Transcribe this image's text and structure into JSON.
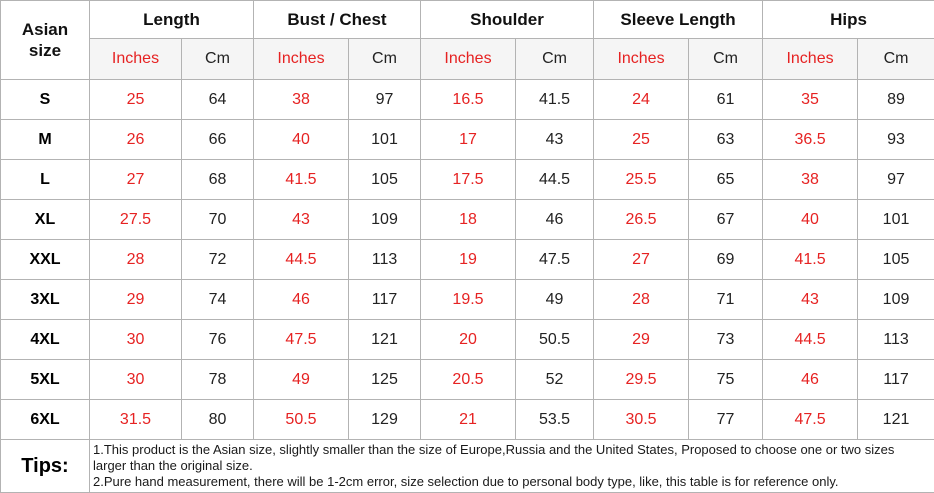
{
  "chart_data": {
    "type": "table",
    "corner_header": "Asian size",
    "column_groups": [
      "Length",
      "Bust / Chest",
      "Shoulder",
      "Sleeve Length",
      "Hips"
    ],
    "unit_labels": [
      "Inches",
      "Cm"
    ],
    "rows": [
      {
        "size": "S",
        "values": [
          "25",
          "64",
          "38",
          "97",
          "16.5",
          "41.5",
          "24",
          "61",
          "35",
          "89"
        ]
      },
      {
        "size": "M",
        "values": [
          "26",
          "66",
          "40",
          "101",
          "17",
          "43",
          "25",
          "63",
          "36.5",
          "93"
        ]
      },
      {
        "size": "L",
        "values": [
          "27",
          "68",
          "41.5",
          "105",
          "17.5",
          "44.5",
          "25.5",
          "65",
          "38",
          "97"
        ]
      },
      {
        "size": "XL",
        "values": [
          "27.5",
          "70",
          "43",
          "109",
          "18",
          "46",
          "26.5",
          "67",
          "40",
          "101"
        ]
      },
      {
        "size": "XXL",
        "values": [
          "28",
          "72",
          "44.5",
          "113",
          "19",
          "47.5",
          "27",
          "69",
          "41.5",
          "105"
        ]
      },
      {
        "size": "3XL",
        "values": [
          "29",
          "74",
          "46",
          "117",
          "19.5",
          "49",
          "28",
          "71",
          "43",
          "109"
        ]
      },
      {
        "size": "4XL",
        "values": [
          "30",
          "76",
          "47.5",
          "121",
          "20",
          "50.5",
          "29",
          "73",
          "44.5",
          "113"
        ]
      },
      {
        "size": "5XL",
        "values": [
          "30",
          "78",
          "49",
          "125",
          "20.5",
          "52",
          "29.5",
          "75",
          "46",
          "117"
        ]
      },
      {
        "size": "6XL",
        "values": [
          "31.5",
          "80",
          "50.5",
          "129",
          "21",
          "53.5",
          "30.5",
          "77",
          "47.5",
          "121"
        ]
      }
    ]
  },
  "tips": {
    "label": "Tips:",
    "lines": [
      "1.This product is the Asian size, slightly smaller than the size of Europe,Russia and the United States, Proposed to choose one or two sizes larger than the original size.",
      "2.Pure hand measurement, there will be 1-2cm error, size selection due to personal body type, like, this table is for reference only."
    ]
  },
  "colors": {
    "inches_red": "#e62222",
    "value_black": "#222222",
    "border_gray": "#b3b3b3",
    "unit_row_bg": "#f5f5f5"
  }
}
